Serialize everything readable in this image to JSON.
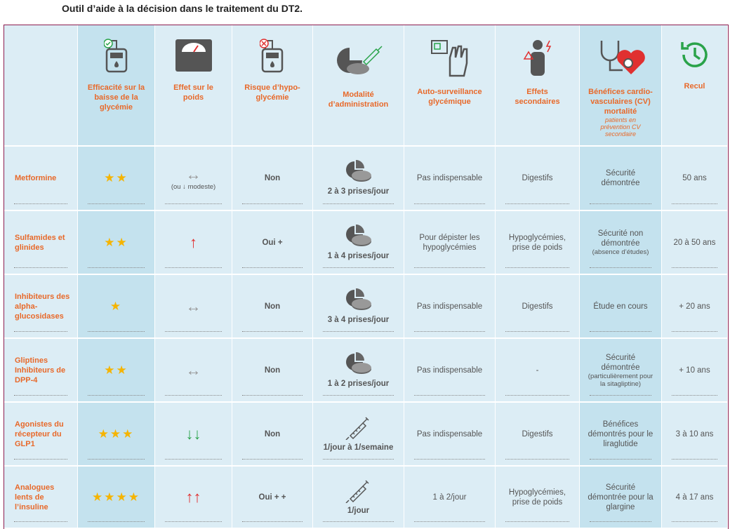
{
  "header": {
    "title": "Outil d’aide à la décision dans le traitement du DT2."
  },
  "table": {
    "columns": [
      {
        "label": "Efficacité sur la baisse de la glycémie"
      },
      {
        "label": "Effet sur le poids"
      },
      {
        "label": "Risque d’hypo-glycémie"
      },
      {
        "label": "Modalité d’administration"
      },
      {
        "label": "Auto-surveillance glycémique"
      },
      {
        "label": "Effets secondaires"
      },
      {
        "label": "Bénéfices cardio-vasculaires (CV) mortalité",
        "note": "patients en prévention CV secondaire"
      },
      {
        "label": "Recul"
      }
    ],
    "rows": [
      {
        "label": "Metformine",
        "cells": [
          {
            "text": "★★"
          },
          {
            "text": "↔",
            "note": "(ou ↓ modeste)"
          },
          {
            "text": "Non"
          },
          {
            "text": "2 à 3 prises/jour"
          },
          {
            "text": "Pas indispensable"
          },
          {
            "text": "Digestifs"
          },
          {
            "text": "Sécurité démontrée"
          },
          {
            "text": "50 ans"
          }
        ]
      },
      {
        "label": "Sulfamides et glinides",
        "cells": [
          {
            "text": "★★"
          },
          {
            "text": "↑"
          },
          {
            "text": "Oui +"
          },
          {
            "text": "1 à 4 prises/jour"
          },
          {
            "text": "Pour dépister les hypoglycémies"
          },
          {
            "text": "Hypoglycémies, prise de poids"
          },
          {
            "text": "Sécurité non démontrée",
            "note": "(absence d’études)"
          },
          {
            "text": "20 à 50 ans"
          }
        ]
      },
      {
        "label": "Inhibiteurs des alpha-glucosidases",
        "cells": [
          {
            "text": "★"
          },
          {
            "text": "↔"
          },
          {
            "text": "Non"
          },
          {
            "text": "3 à 4 prises/jour"
          },
          {
            "text": "Pas indispensable"
          },
          {
            "text": "Digestifs"
          },
          {
            "text": "Étude en cours"
          },
          {
            "text": "+ 20 ans"
          }
        ]
      },
      {
        "label": "Gliptines Inhibiteurs de DPP-4",
        "cells": [
          {
            "text": "★★"
          },
          {
            "text": "↔"
          },
          {
            "text": "Non"
          },
          {
            "text": "1 à 2 prises/jour"
          },
          {
            "text": "Pas indispensable"
          },
          {
            "text": "-"
          },
          {
            "text": "Sécurité démontrée",
            "note": "(particulièrement pour la sitagliptine)"
          },
          {
            "text": "+ 10 ans"
          }
        ]
      },
      {
        "label": "Agonistes du récepteur du GLP1",
        "cells": [
          {
            "text": "★★★"
          },
          {
            "text": "↓↓"
          },
          {
            "text": "Non"
          },
          {
            "text": "1/jour à 1/semaine"
          },
          {
            "text": "Pas indispensable"
          },
          {
            "text": "Digestifs"
          },
          {
            "text": "Bénéfices démontrés pour le liraglutide"
          },
          {
            "text": "3 à 10 ans"
          }
        ]
      },
      {
        "label": "Analogues lents de l’insuline",
        "cells": [
          {
            "text": "★★★★"
          },
          {
            "text": "↑↑"
          },
          {
            "text": "Oui + +"
          },
          {
            "text": "1/jour"
          },
          {
            "text": "1 à 2/jour"
          },
          {
            "text": "Hypoglycémies, prise de poids"
          },
          {
            "text": "Sécurité démontrée pour la glargine"
          },
          {
            "text": "4 à 17 ans"
          }
        ]
      }
    ]
  }
}
